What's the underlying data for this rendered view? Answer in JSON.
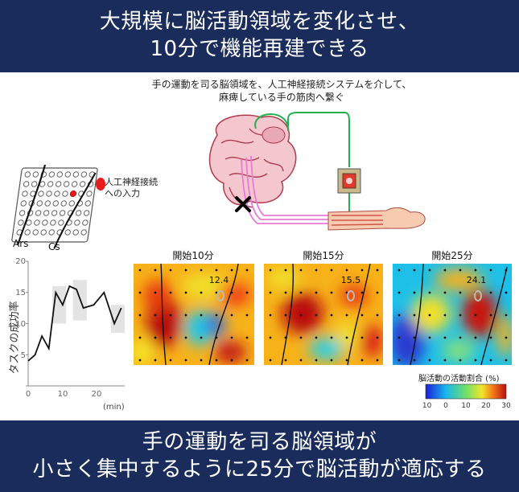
{
  "title": {
    "line1": "大規模に脳活動領域を変化させ、",
    "line2": "10分で機能再建できる"
  },
  "caption": {
    "line1": "手の運動を司る脳領域を、人工神経接続システムを介して、",
    "line2": "麻痺している手の筋肉へ繋ぐ"
  },
  "electrode_panel": {
    "input_label_line1": "人工神経接続",
    "input_label_line2": "への入力",
    "sulcus_labels": [
      "Ars",
      "Cs"
    ]
  },
  "success_chart": {
    "ylabel": "タスクの成功率",
    "xlabel_unit": "(min)",
    "yticks": [
      "0",
      "5",
      "10",
      "15",
      "20"
    ],
    "xticks": [
      "0",
      "10",
      "20"
    ]
  },
  "heatmaps": [
    {
      "title": "開始10分",
      "value": "12.4"
    },
    {
      "title": "開始15分",
      "value": "15.5"
    },
    {
      "title": "開始25分",
      "value": "24.1"
    }
  ],
  "colorbar": {
    "label": "脳活動の活動割合 (%)",
    "ticks": [
      "-10",
      "0",
      "10",
      "20",
      "30"
    ]
  },
  "conclusion": {
    "line1": "手の運動を司る脳領域が",
    "line2": "小さく集中するように25分で脳活動が適応する"
  },
  "colors": {
    "banner": "#1a2c5c",
    "marker": "#e81c1c",
    "wire": "#22b14c",
    "nerve": "#e97ad6"
  },
  "chart_data": {
    "type": "line",
    "ylabel": "タスクの成功率",
    "xlabel": "(min)",
    "xlim": [
      0,
      28
    ],
    "ylim": [
      0,
      20
    ],
    "x": [
      0,
      2,
      4,
      6,
      8,
      10,
      12,
      14,
      16,
      19,
      22,
      25,
      27
    ],
    "y": [
      4,
      5,
      8,
      6,
      15,
      13,
      16,
      15.5,
      12.5,
      13,
      15,
      10,
      12.5
    ],
    "shaded_bands": [
      {
        "x": [
          7,
          11
        ],
        "y": [
          10,
          16
        ]
      },
      {
        "x": [
          13,
          17
        ],
        "y": [
          10.5,
          17
        ]
      },
      {
        "x": [
          24,
          28
        ],
        "y": [
          8.5,
          13
        ]
      }
    ]
  }
}
